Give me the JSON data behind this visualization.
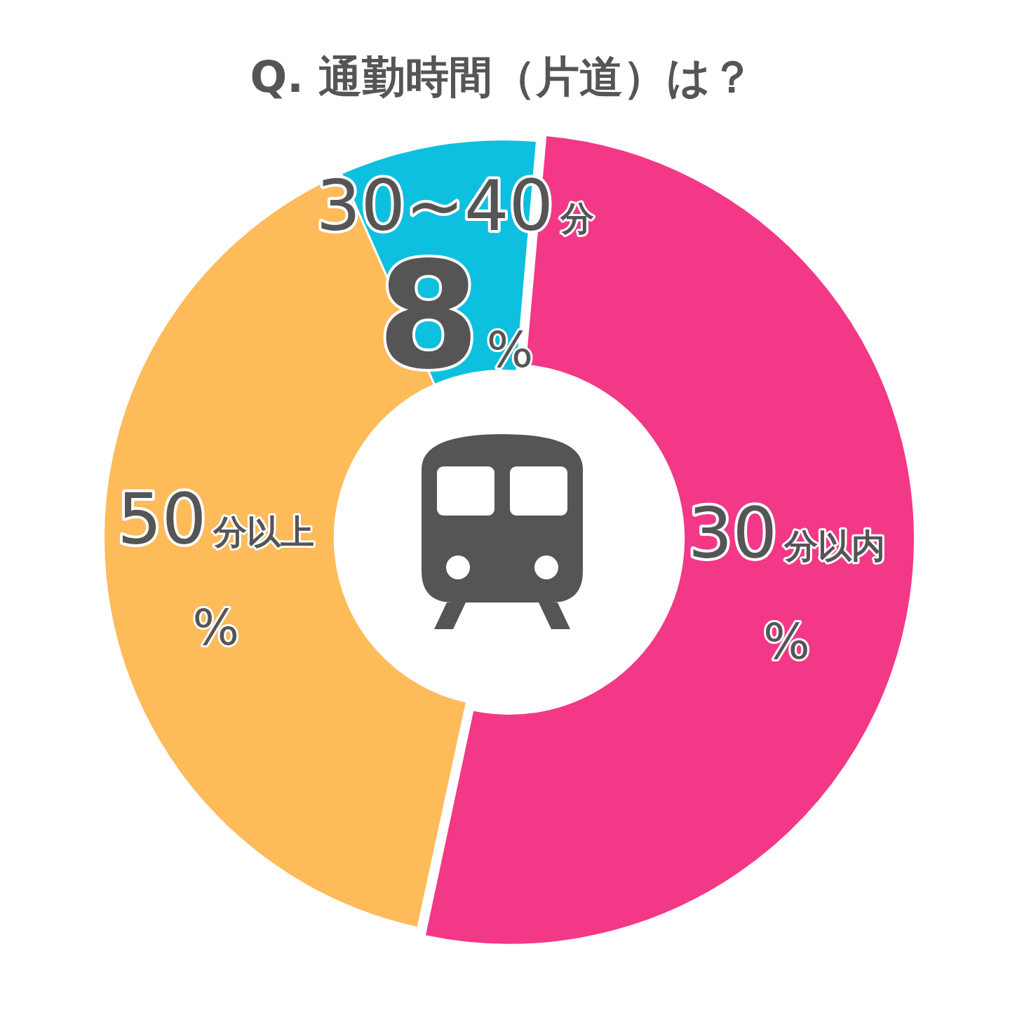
{
  "chart_data": {
    "type": "donut",
    "title": "Q. 通勤時間（片道）は？",
    "categories": [
      "30分以内",
      "50分以上",
      "30~40分"
    ],
    "values": [
      52,
      40,
      8
    ],
    "colors": [
      "#f33888",
      "#fdbb5a",
      "#0dc0df"
    ],
    "value_labels": [
      "%",
      "%",
      "8%"
    ],
    "legend": false
  }
}
